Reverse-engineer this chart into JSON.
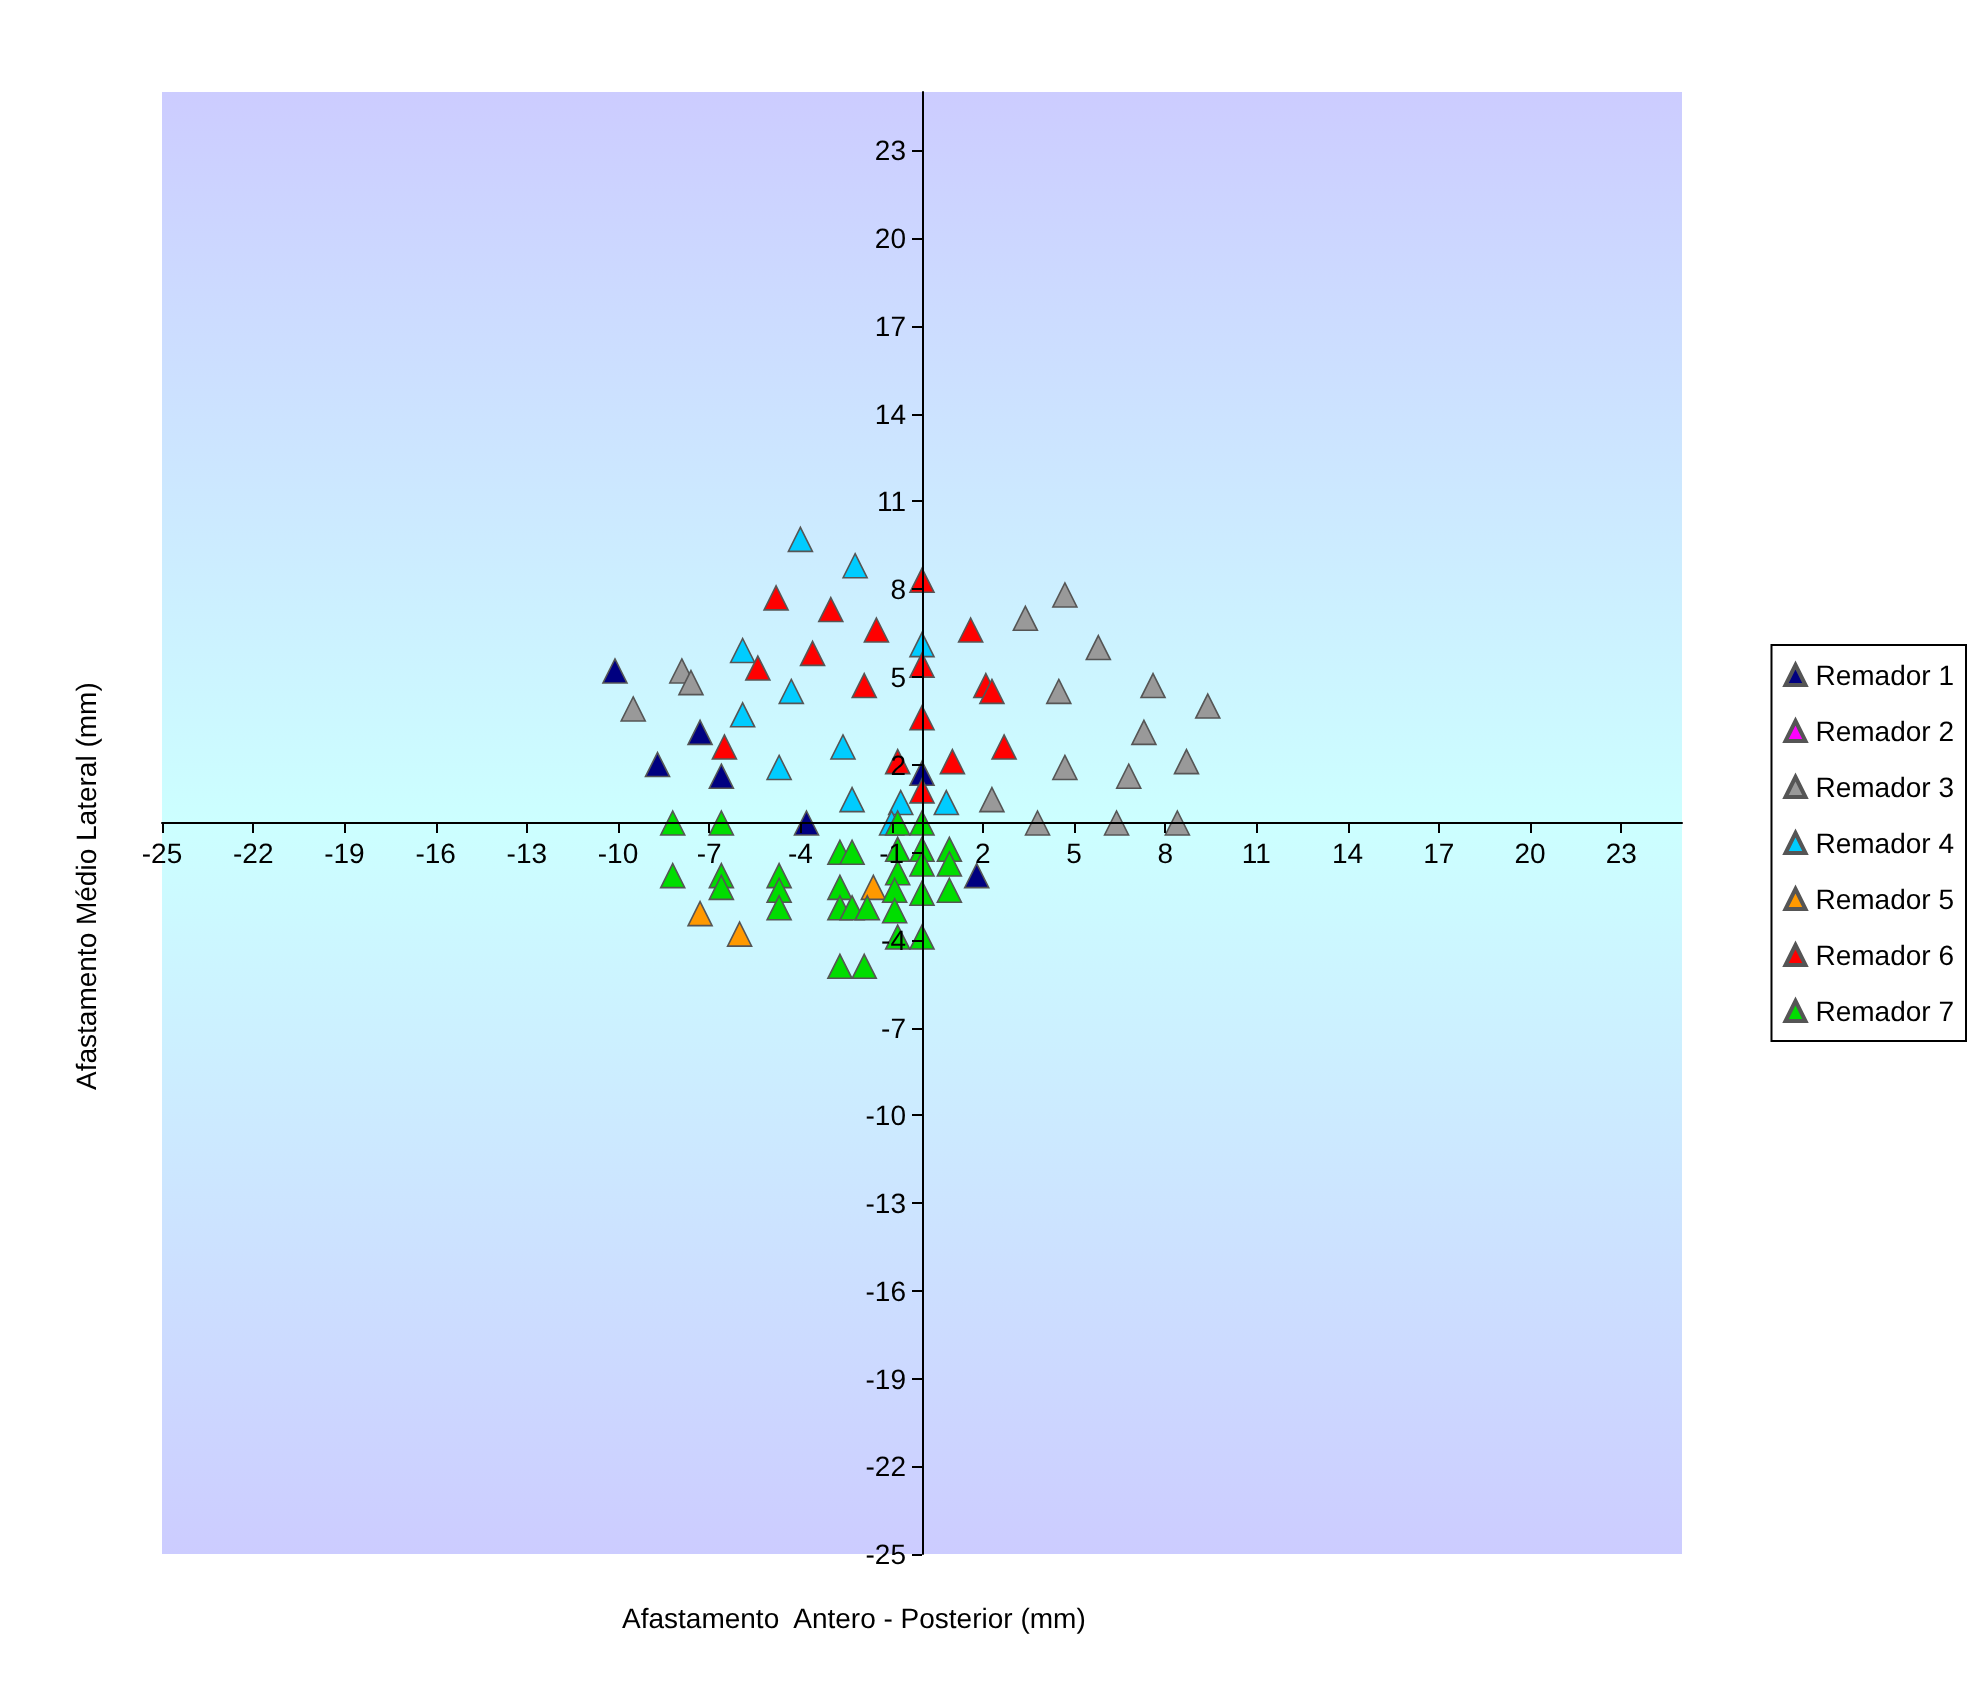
{
  "chart_data": {
    "type": "scatter",
    "xlabel": "Afastamento  Antero - Posterior (mm)",
    "ylabel": "Afastamento Médio Lateral (mm)",
    "xlim": [
      -25,
      25
    ],
    "ylim": [
      -25,
      25
    ],
    "xticks": [
      -25,
      -22,
      -19,
      -16,
      -13,
      -10,
      -7,
      -4,
      -1,
      2,
      5,
      8,
      11,
      14,
      17,
      20,
      23
    ],
    "yticks": [
      -25,
      -22,
      -19,
      -16,
      -13,
      -10,
      -7,
      -4,
      {
        "value": -1,
        "label": null
      },
      2,
      5,
      8,
      11,
      14,
      17,
      20,
      23
    ],
    "legend": "right",
    "marker": "triangle",
    "grid": false,
    "series": [
      {
        "name": "Remador 1",
        "color": "#000080",
        "x": [
          -10.1,
          -8.7,
          -7.3,
          -6.6,
          -3.8,
          0,
          1.8
        ],
        "values": [
          5.2,
          2.0,
          3.1,
          1.6,
          0,
          1.7,
          -1.8
        ]
      },
      {
        "name": "Remador 2",
        "color": "#ff00ff"
      },
      {
        "name": "Remador 3",
        "color": "#999999",
        "x": [
          -9.5,
          -7.9,
          -7.6,
          2.3,
          3.8,
          4.7,
          3.4,
          4.7,
          4.5,
          5.8,
          6.4,
          6.8,
          7.3,
          7.6,
          8.4,
          8.7,
          9.4
        ],
        "values": [
          3.9,
          5.2,
          4.8,
          0.8,
          0,
          1.9,
          7.0,
          7.8,
          4.5,
          6.0,
          0,
          1.6,
          3.1,
          4.7,
          0,
          2.1,
          4.0
        ]
      },
      {
        "name": "Remador 4",
        "color": "#00ccff",
        "x": [
          -4,
          -2.2,
          -5.9,
          -4.3,
          -5.9,
          -4.7,
          -2.6,
          -2.3,
          -0.7,
          0,
          0.8,
          -1
        ],
        "values": [
          9.7,
          8.8,
          5.9,
          4.5,
          3.7,
          1.9,
          2.6,
          0.8,
          0.7,
          6.1,
          0.7,
          0
        ]
      },
      {
        "name": "Remador 5",
        "color": "#ff9900",
        "x": [
          -7.3,
          -6.0,
          -1.6
        ],
        "values": [
          -3.1,
          -3.8,
          -2.2
        ]
      },
      {
        "name": "Remador 6",
        "color": "#ff0000",
        "x": [
          -4.8,
          -3.0,
          -1.5,
          -3.6,
          -5.4,
          -1.9,
          -6.5,
          -0.8,
          0,
          0,
          0,
          0,
          1.6,
          2.1,
          2.3,
          2.7,
          1.0
        ],
        "values": [
          7.7,
          7.3,
          6.6,
          5.8,
          5.3,
          4.7,
          2.6,
          2.1,
          8.3,
          5.4,
          3.6,
          1.1,
          6.6,
          4.7,
          4.5,
          2.6,
          2.1
        ]
      },
      {
        "name": "Remador 7",
        "color": "#00dd00",
        "x": [
          -8.2,
          -6.6,
          -8.2,
          -6.6,
          -6.6,
          -4.7,
          -4.7,
          -4.7,
          -2.7,
          -2.3,
          -2.7,
          -2.7,
          -2.3,
          -1.8,
          -2.7,
          -1.9,
          -0.8,
          -0.8,
          -0.8,
          -0.9,
          -0.9,
          -0.8,
          0,
          0,
          0,
          0,
          0,
          0.9,
          0.9,
          0.9
        ],
        "values": [
          0,
          0,
          -1.8,
          -1.8,
          -2.2,
          -1.8,
          -2.3,
          -2.9,
          -1.0,
          -1.0,
          -2.2,
          -2.9,
          -2.9,
          -2.9,
          -4.9,
          -4.9,
          0,
          -0.9,
          -1.7,
          -2.3,
          -3.0,
          -3.9,
          0,
          -0.9,
          -1.4,
          -2.4,
          -3.9,
          -0.9,
          -1.4,
          -2.3
        ]
      }
    ]
  }
}
